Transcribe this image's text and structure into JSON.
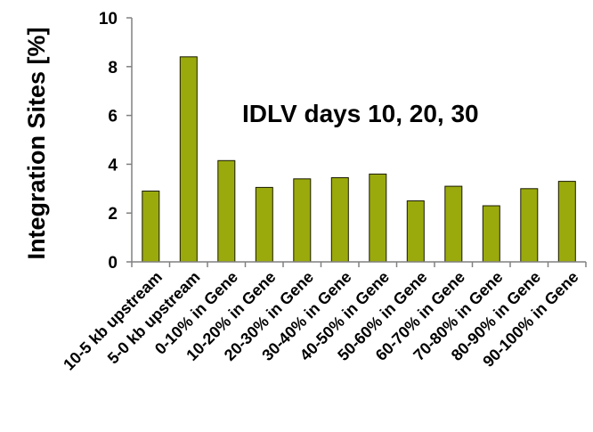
{
  "chart_data": {
    "type": "bar",
    "ylabel": "Integration Sites [%]",
    "annotation": "IDLV days 10, 20, 30",
    "ylim": [
      0,
      10
    ],
    "yticks": [
      0,
      2,
      4,
      6,
      8,
      10
    ],
    "bar_color": "#9aaa0c",
    "bar_edge_color": "#1a1a00",
    "grid": false,
    "categories": [
      "10-5 kb upstream",
      "5-0 kb upstream",
      "0-10% in Gene",
      "10-20% in Gene",
      "20-30% in Gene",
      "30-40% in Gene",
      "40-50% in Gene",
      "50-60% in Gene",
      "60-70% in Gene",
      "70-80% in Gene",
      "80-90% in Gene",
      "90-100% in Gene"
    ],
    "values": [
      2.9,
      8.4,
      4.15,
      3.05,
      3.4,
      3.45,
      3.6,
      2.5,
      3.1,
      2.3,
      3.0,
      3.3
    ]
  }
}
